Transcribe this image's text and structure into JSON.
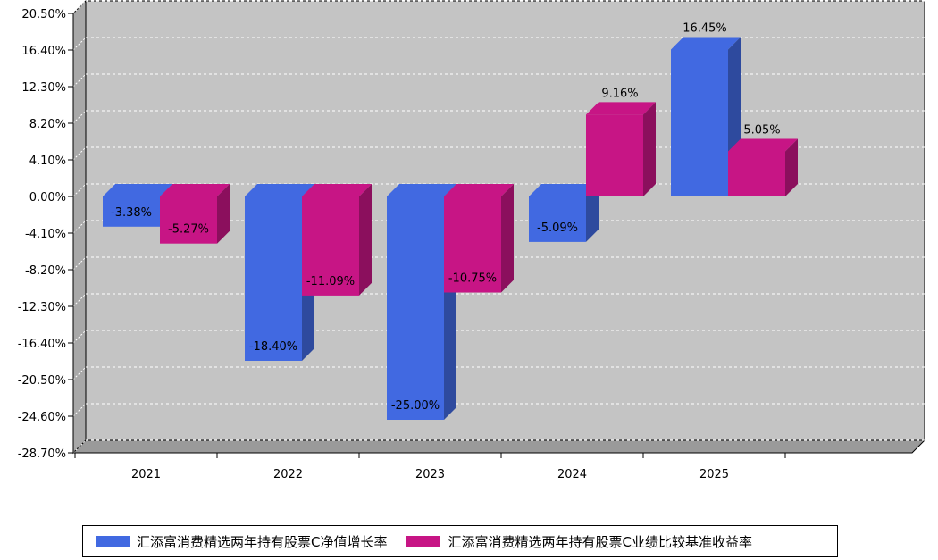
{
  "chart_data": {
    "type": "bar",
    "categories": [
      "2021",
      "2022",
      "2023",
      "2024",
      "2025"
    ],
    "series": [
      {
        "name": "汇添富消费精选两年持有股票C净值增长率",
        "color": "#4169E1",
        "values": [
          -3.38,
          -18.4,
          -25.0,
          -5.09,
          16.45
        ],
        "labels": [
          "-3.38%",
          "-18.40%",
          "-25.00%",
          "-5.09%",
          "16.45%"
        ]
      },
      {
        "name": "汇添富消费精选两年持有股票C业绩比较基准收益率",
        "color": "#C71585",
        "values": [
          -5.27,
          -11.09,
          -10.75,
          9.16,
          5.05
        ],
        "labels": [
          "-5.27%",
          "-11.09%",
          "-10.75%",
          "9.16%",
          "5.05%"
        ]
      }
    ],
    "yticks": [
      "20.50%",
      "16.40%",
      "12.30%",
      "8.20%",
      "4.10%",
      "0.00%",
      "-4.10%",
      "-8.20%",
      "-12.30%",
      "-16.40%",
      "-20.50%",
      "-24.60%",
      "-28.70%"
    ],
    "ylim": [
      -28.7,
      20.5
    ],
    "grid": true,
    "legend_position": "bottom",
    "three_d": true
  }
}
